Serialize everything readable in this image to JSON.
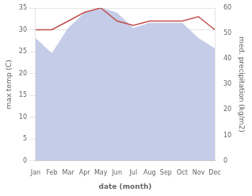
{
  "chart_data": {
    "type": "line",
    "categories": [
      "Jan",
      "Feb",
      "Mar",
      "Apr",
      "May",
      "Jun",
      "Jul",
      "Aug",
      "Sep",
      "Oct",
      "Nov",
      "Dec"
    ],
    "series": [
      {
        "type": "line",
        "color": "#c0504d",
        "values": [
          30.0,
          30.0,
          32.0,
          34.0,
          35.0,
          32.0,
          31.0,
          32.0,
          32.0,
          32.0,
          33.0,
          30.0
        ]
      },
      {
        "type": "area",
        "color": "#c5cce8",
        "axis": "y2",
        "values": [
          48,
          42,
          52,
          58,
          60,
          58,
          52,
          54,
          54,
          54,
          48,
          44
        ]
      }
    ],
    "xlabel": "date (month)",
    "ylabel": "max temp (C)",
    "y2label": "med. precipitation (kg/m2)",
    "ylim": [
      0,
      35
    ],
    "yticks": [
      0,
      5,
      10,
      15,
      20,
      25,
      30,
      35
    ],
    "y2lim": [
      0,
      60
    ],
    "y2ticks": [
      0,
      10,
      20,
      30,
      40,
      50,
      60
    ],
    "grid": true
  }
}
